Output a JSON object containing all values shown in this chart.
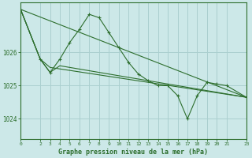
{
  "bg_color": "#cce8e8",
  "grid_color": "#aacfcf",
  "line_color": "#2d6e2d",
  "text_color": "#2d6e2d",
  "title": "Graphe pression niveau de la mer (hPa)",
  "xlabel_ticks": [
    0,
    2,
    3,
    4,
    5,
    6,
    7,
    8,
    9,
    10,
    11,
    12,
    13,
    14,
    15,
    16,
    17,
    18,
    19,
    20,
    21,
    23
  ],
  "ylim": [
    1023.4,
    1027.5
  ],
  "yticks": [
    1024,
    1025,
    1026
  ],
  "xlim": [
    0,
    23
  ],
  "series_wavy": {
    "x": [
      0,
      2,
      3,
      4,
      5,
      6,
      7,
      8,
      9,
      10,
      11,
      12,
      13,
      14,
      15,
      16,
      17,
      18,
      19,
      20,
      21,
      23
    ],
    "y": [
      1027.3,
      1025.8,
      1025.4,
      1025.8,
      1026.3,
      1026.7,
      1027.15,
      1027.05,
      1026.6,
      1026.15,
      1025.7,
      1025.35,
      1025.15,
      1025.0,
      1025.0,
      1024.7,
      1024.0,
      1024.7,
      1025.1,
      1025.05,
      1025.0,
      1024.65
    ]
  },
  "series_line1": {
    "x": [
      0,
      23
    ],
    "y": [
      1027.3,
      1024.65
    ]
  },
  "series_line2": {
    "x": [
      0,
      2,
      3,
      23
    ],
    "y": [
      1027.3,
      1025.8,
      1025.55,
      1024.65
    ]
  },
  "series_line3": {
    "x": [
      0,
      2,
      3,
      4,
      23
    ],
    "y": [
      1027.3,
      1025.8,
      1025.4,
      1025.6,
      1024.65
    ]
  }
}
